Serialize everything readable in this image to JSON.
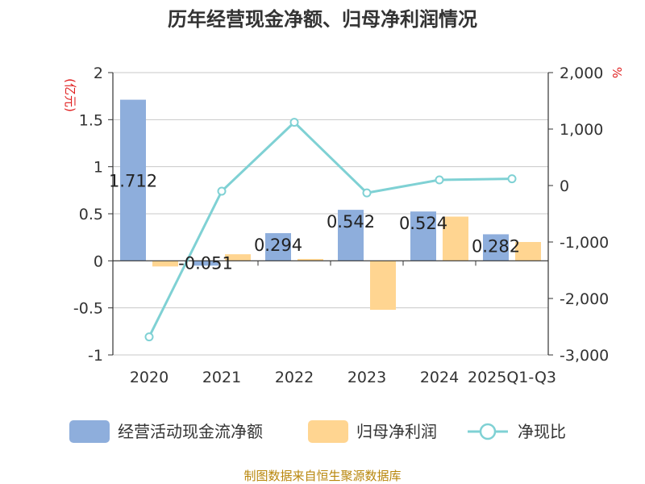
{
  "chart_data": {
    "type": "bar+line",
    "title": "历年经营现金净额、归母净利润情况",
    "categories": [
      "2020",
      "2021",
      "2022",
      "2023",
      "2024",
      "2025Q1-Q3"
    ],
    "series": [
      {
        "name": "经营活动现金流净额",
        "type": "bar",
        "axis": "left",
        "color": "#8eaedc",
        "values": [
          1.712,
          -0.051,
          0.294,
          0.542,
          0.524,
          0.282
        ],
        "labels": [
          "1.712",
          "-0.051",
          "0.294",
          "0.542",
          "0.524",
          "0.282"
        ]
      },
      {
        "name": "归母净利润",
        "type": "bar",
        "axis": "left",
        "color": "#ffd591",
        "values": [
          -0.06,
          0.07,
          0.02,
          -0.52,
          0.47,
          0.2
        ]
      },
      {
        "name": "净现比",
        "type": "line",
        "axis": "right",
        "color": "#7fd1d4",
        "values": [
          -2680,
          -100,
          1120,
          -130,
          100,
          120
        ]
      }
    ],
    "y_left": {
      "min": -1,
      "max": 2,
      "ticks": [
        "-1",
        "-0.5",
        "0",
        "0.5",
        "1",
        "1.5",
        "2"
      ],
      "unit": "(亿元)"
    },
    "y_right": {
      "min": -3000,
      "max": 2000,
      "ticks": [
        "-3,000",
        "-2,000",
        "-1,000",
        "0",
        "1,000",
        "2,000"
      ],
      "unit": "%"
    },
    "grid": true,
    "legend_position": "bottom"
  },
  "source": "制图数据来自恒生聚源数据库"
}
